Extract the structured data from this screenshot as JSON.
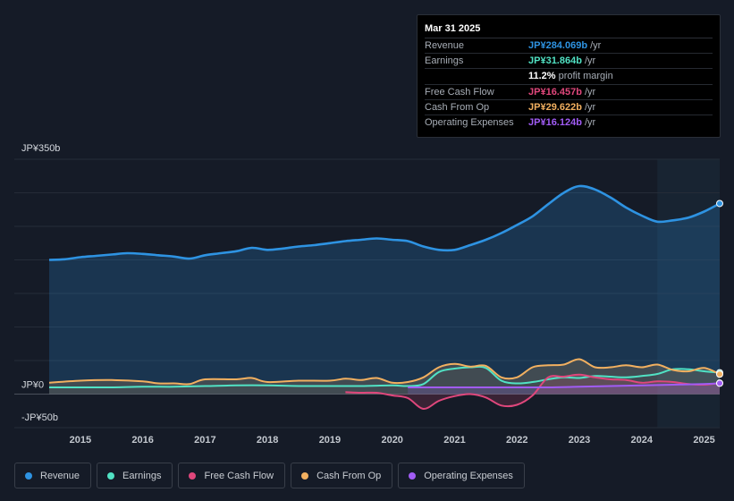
{
  "tooltip": {
    "date": "Mar 31 2025",
    "rows": [
      {
        "label": "Revenue",
        "value": "JP¥284.069b",
        "unit": "/yr",
        "color": "#2e93e2"
      },
      {
        "label": "Earnings",
        "value": "JP¥31.864b",
        "unit": "/yr",
        "color": "#51e2c4"
      },
      {
        "label": "",
        "value": "11.2%",
        "unit": "profit margin",
        "color": "#ffffff"
      },
      {
        "label": "Free Cash Flow",
        "value": "JP¥16.457b",
        "unit": "/yr",
        "color": "#e0477c"
      },
      {
        "label": "Cash From Op",
        "value": "JP¥29.622b",
        "unit": "/yr",
        "color": "#f2b060"
      },
      {
        "label": "Operating Expenses",
        "value": "JP¥16.124b",
        "unit": "/yr",
        "color": "#a15cf5"
      }
    ]
  },
  "legend": [
    {
      "label": "Revenue",
      "color": "#2e93e2"
    },
    {
      "label": "Earnings",
      "color": "#51e2c4"
    },
    {
      "label": "Free Cash Flow",
      "color": "#e0477c"
    },
    {
      "label": "Cash From Op",
      "color": "#f2b060"
    },
    {
      "label": "Operating Expenses",
      "color": "#a15cf5"
    }
  ],
  "chart_data": {
    "type": "area",
    "title": "",
    "xlabel": "",
    "ylabel": "",
    "ylim": [
      -50,
      350
    ],
    "xlim": [
      2014.4,
      2025.25
    ],
    "y_tick_labels": [
      "JP¥350b",
      "JP¥0",
      "-JP¥50b"
    ],
    "x_tick_labels": [
      "2015",
      "2016",
      "2017",
      "2018",
      "2019",
      "2020",
      "2021",
      "2022",
      "2023",
      "2024",
      "2025"
    ],
    "x_ticks": [
      2015,
      2016,
      2017,
      2018,
      2019,
      2020,
      2021,
      2022,
      2023,
      2024,
      2025
    ],
    "highlight_start": 2024.25,
    "series": [
      {
        "name": "Revenue",
        "color": "#2e93e2",
        "fill": true,
        "x": [
          2014.5,
          2014.75,
          2015.0,
          2015.25,
          2015.5,
          2015.75,
          2016.0,
          2016.25,
          2016.5,
          2016.75,
          2017.0,
          2017.25,
          2017.5,
          2017.75,
          2018.0,
          2018.25,
          2018.5,
          2018.75,
          2019.0,
          2019.25,
          2019.5,
          2019.75,
          2020.0,
          2020.25,
          2020.5,
          2020.75,
          2021.0,
          2021.25,
          2021.5,
          2021.75,
          2022.0,
          2022.25,
          2022.5,
          2022.75,
          2023.0,
          2023.25,
          2023.5,
          2023.75,
          2024.0,
          2024.25,
          2024.5,
          2024.75,
          2025.0,
          2025.25
        ],
        "values": [
          200,
          201,
          204,
          206,
          208,
          210,
          209,
          207,
          205,
          202,
          207,
          210,
          213,
          218,
          215,
          217,
          220,
          222,
          225,
          228,
          230,
          232,
          230,
          228,
          220,
          215,
          215,
          222,
          230,
          240,
          252,
          265,
          283,
          300,
          310,
          305,
          293,
          278,
          266,
          257,
          259,
          263,
          272,
          284.069
        ]
      },
      {
        "name": "Earnings",
        "color": "#51e2c4",
        "fill": false,
        "x": [
          2014.5,
          2015.0,
          2015.5,
          2016.0,
          2016.5,
          2017.0,
          2017.5,
          2018.0,
          2018.5,
          2019.0,
          2019.5,
          2020.0,
          2020.25,
          2020.5,
          2020.75,
          2021.0,
          2021.25,
          2021.5,
          2021.75,
          2022.0,
          2022.25,
          2022.5,
          2022.75,
          2023.0,
          2023.25,
          2023.5,
          2023.75,
          2024.0,
          2024.25,
          2024.5,
          2024.75,
          2025.0,
          2025.25
        ],
        "values": [
          10,
          10,
          10,
          11,
          11,
          12,
          13,
          13,
          12,
          12,
          12,
          13,
          12,
          15,
          33,
          38,
          40,
          39,
          20,
          16,
          18,
          22,
          25,
          24,
          27,
          26,
          25,
          27,
          30,
          37,
          37,
          34,
          31.864
        ]
      },
      {
        "name": "Free Cash Flow",
        "color": "#e0477c",
        "fill": true,
        "x": [
          2019.25,
          2019.5,
          2019.75,
          2020.0,
          2020.25,
          2020.5,
          2020.75,
          2021.0,
          2021.25,
          2021.5,
          2021.75,
          2022.0,
          2022.25,
          2022.5,
          2022.75,
          2023.0,
          2023.25,
          2023.5,
          2023.75,
          2024.0,
          2024.25,
          2024.5,
          2024.75,
          2025.0,
          2025.25
        ],
        "values": [
          3,
          2,
          2,
          -2,
          -6,
          -22,
          -10,
          -3,
          0,
          -5,
          -17,
          -16,
          -2,
          25,
          26,
          29,
          25,
          22,
          21,
          17,
          19,
          18,
          15,
          14,
          16.457
        ]
      },
      {
        "name": "Cash From Op",
        "color": "#f2b060",
        "fill": true,
        "x": [
          2014.5,
          2015.0,
          2015.5,
          2016.0,
          2016.25,
          2016.5,
          2016.75,
          2017.0,
          2017.5,
          2017.75,
          2018.0,
          2018.5,
          2019.0,
          2019.25,
          2019.5,
          2019.75,
          2020.0,
          2020.25,
          2020.5,
          2020.75,
          2021.0,
          2021.25,
          2021.5,
          2021.75,
          2022.0,
          2022.25,
          2022.5,
          2022.75,
          2023.0,
          2023.25,
          2023.5,
          2023.75,
          2024.0,
          2024.25,
          2024.5,
          2024.75,
          2025.0,
          2025.25
        ],
        "values": [
          17,
          20,
          21,
          19,
          16,
          16,
          15,
          22,
          22,
          24,
          18,
          20,
          20,
          23,
          21,
          24,
          17,
          18,
          25,
          40,
          45,
          41,
          42,
          25,
          25,
          40,
          43,
          44,
          52,
          40,
          40,
          43,
          40,
          44,
          36,
          34,
          39,
          29.622
        ]
      },
      {
        "name": "Operating Expenses",
        "color": "#a15cf5",
        "fill": true,
        "x": [
          2020.25,
          2020.5,
          2021.0,
          2021.5,
          2022.0,
          2022.5,
          2023.0,
          2023.5,
          2024.0,
          2024.5,
          2025.0,
          2025.25
        ],
        "values": [
          10,
          10,
          10,
          10,
          10,
          10,
          11,
          12,
          13,
          14,
          15,
          16.124
        ]
      }
    ]
  }
}
